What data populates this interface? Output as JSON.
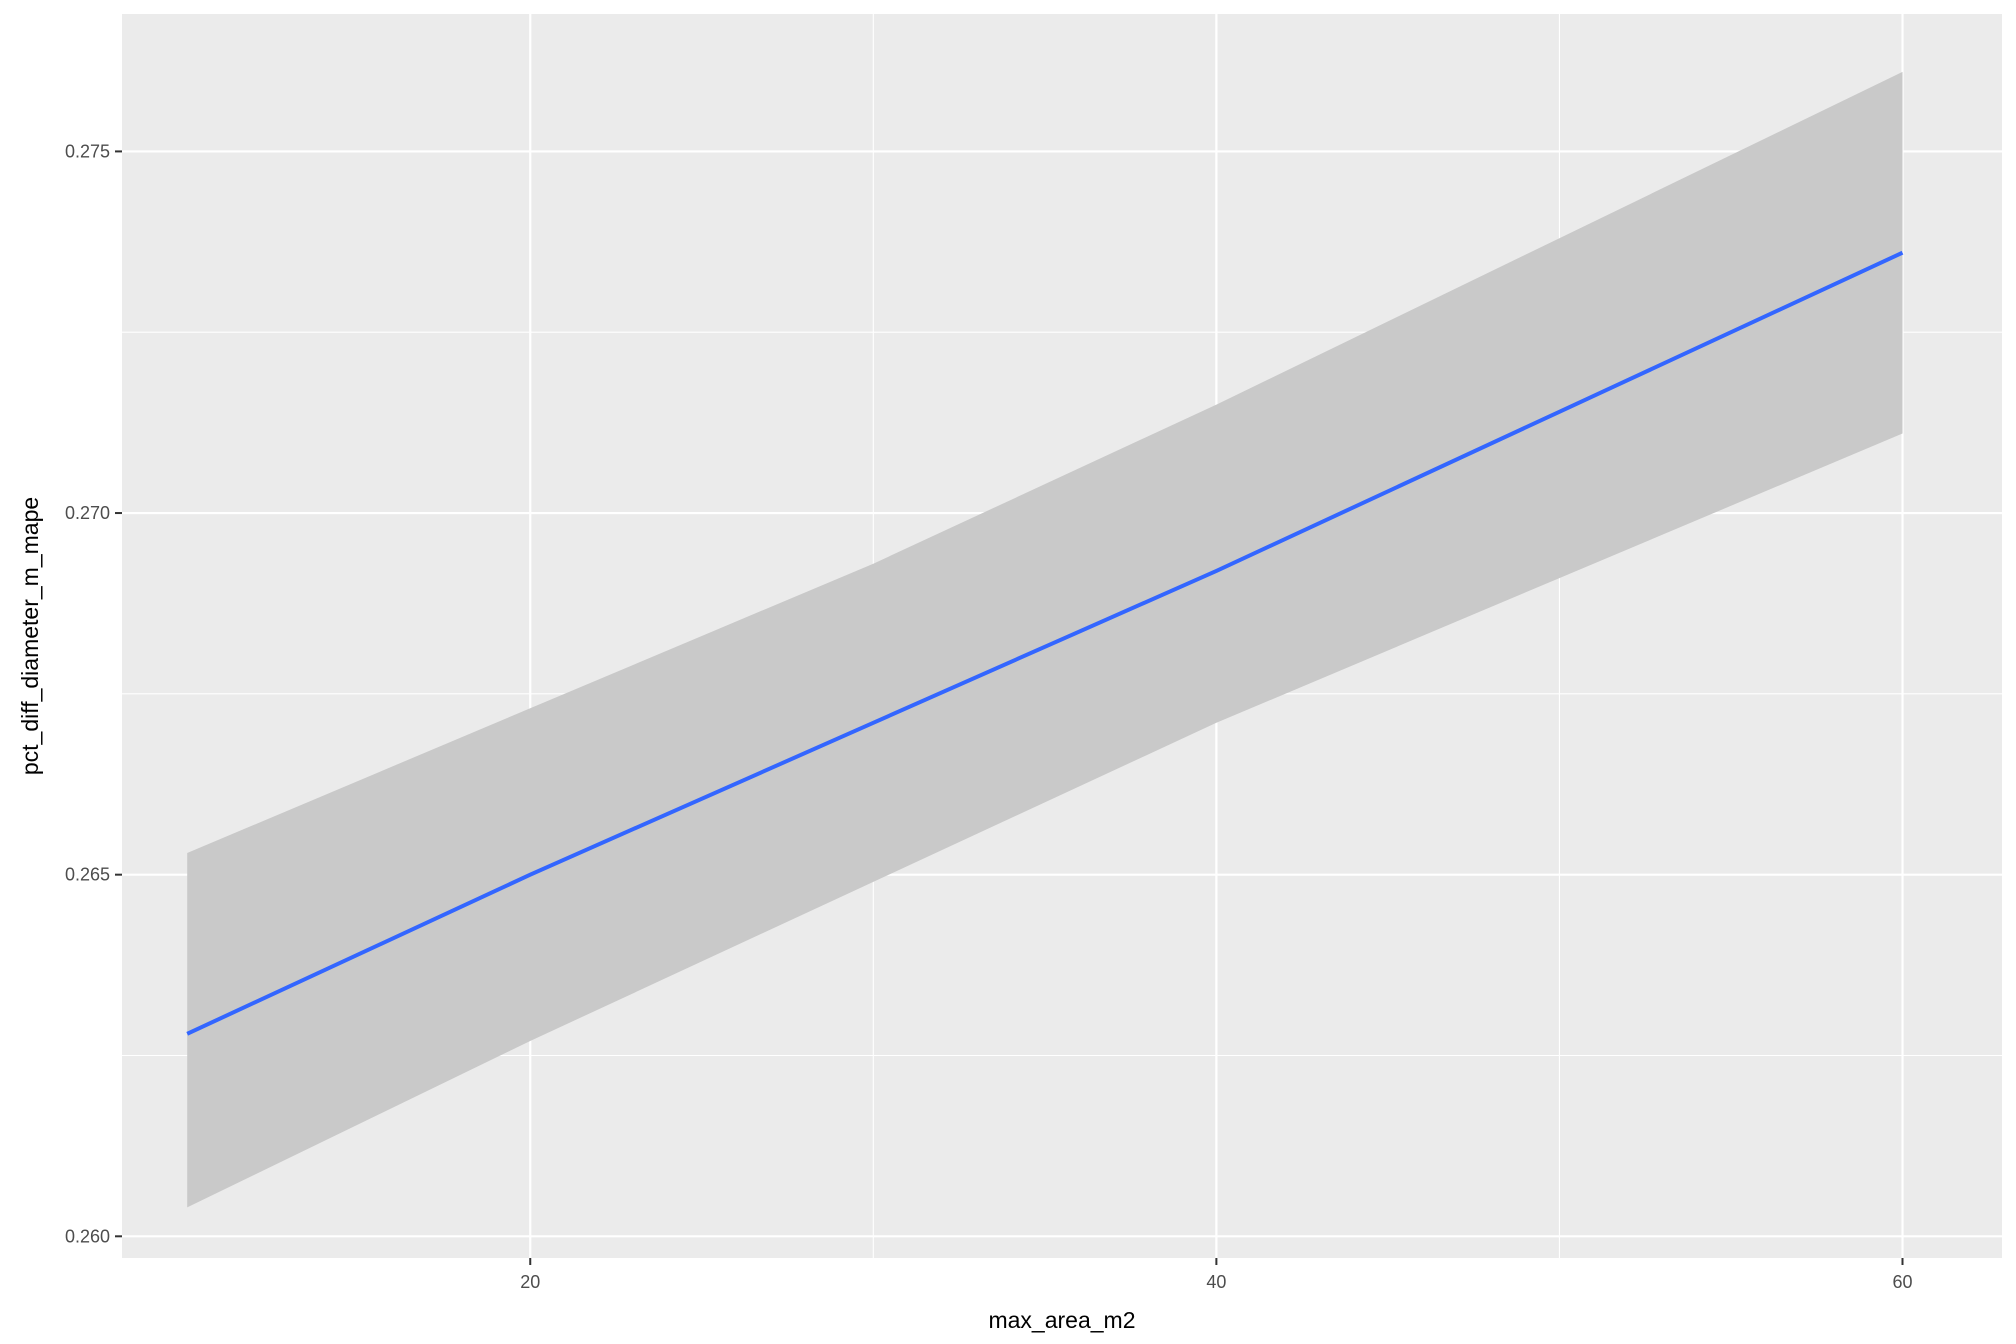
{
  "chart_data": {
    "type": "line",
    "title": "",
    "xlabel": "max_area_m2",
    "ylabel": "pct_diff_diameter_m_mape",
    "xlim": [
      8.1,
      62.9
    ],
    "ylim": [
      0.2597,
      0.2769
    ],
    "x_ticks": [
      20,
      40,
      60
    ],
    "x_tick_labels": [
      "20",
      "40",
      "60"
    ],
    "y_ticks": [
      0.26,
      0.265,
      0.27,
      0.275
    ],
    "y_tick_labels": [
      "0.260",
      "0.265",
      "0.270",
      "0.275"
    ],
    "grid": true,
    "legend": "none",
    "series": [
      {
        "x": [
          10,
          20,
          30,
          40,
          50,
          60
        ],
        "y": [
          0.2628,
          0.265,
          0.2671,
          0.2692,
          0.2714,
          0.2736
        ],
        "ci_lower": [
          0.2604,
          0.2627,
          0.2649,
          0.2671,
          0.2691,
          0.2711
        ],
        "ci_upper": [
          0.2653,
          0.2673,
          0.2693,
          0.2715,
          0.2738,
          0.2761
        ]
      }
    ],
    "colors": {
      "line": "#3366FF",
      "ribbon": "#C9C9C9",
      "panel_background": "#EBEBEB",
      "grid": "#FFFFFF",
      "tick": "#333333"
    }
  }
}
